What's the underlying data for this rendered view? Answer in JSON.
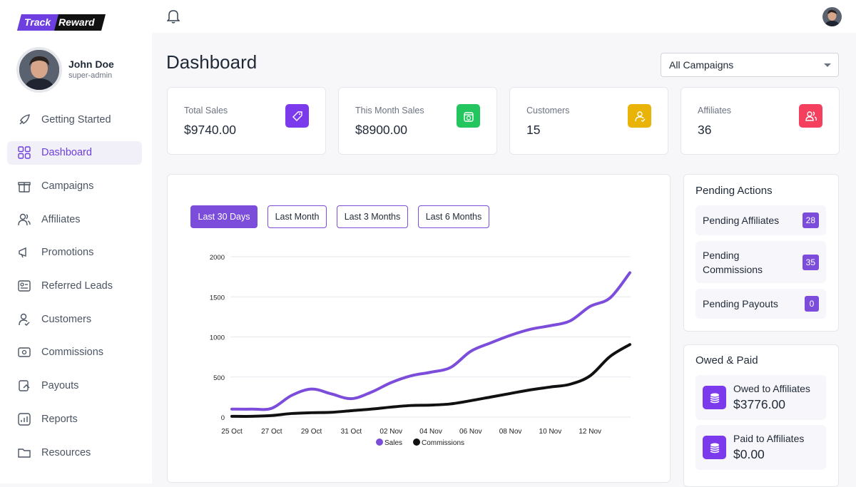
{
  "brand": {
    "part1": "Track",
    "part2": "Reward"
  },
  "user": {
    "name": "John Doe",
    "role": "super-admin"
  },
  "nav": [
    "Getting Started",
    "Dashboard",
    "Campaigns",
    "Affiliates",
    "Promotions",
    "Referred Leads",
    "Customers",
    "Commissions",
    "Payouts",
    "Reports",
    "Resources"
  ],
  "header": {
    "title": "Dashboard",
    "campaign_select": "All Campaigns"
  },
  "stats": [
    {
      "label": "Total Sales",
      "value": "$9740.00"
    },
    {
      "label": "This Month Sales",
      "value": "$8900.00"
    },
    {
      "label": "Customers",
      "value": "15"
    },
    {
      "label": "Affiliates",
      "value": "36"
    }
  ],
  "filters": [
    "Last 30 Days",
    "Last Month",
    "Last 3 Months",
    "Last 6 Months"
  ],
  "chart_data": {
    "type": "line",
    "categories": [
      "25 Oct",
      null,
      "27 Oct",
      null,
      "29 Oct",
      null,
      "31 Oct",
      null,
      "02 Nov",
      null,
      "04 Nov",
      null,
      "06 Nov",
      null,
      "08 Nov",
      null,
      "10 Nov",
      null,
      "12 Nov",
      null,
      null
    ],
    "series": [
      {
        "name": "Sales",
        "color": "#7c4ddb",
        "values": [
          100,
          100,
          110,
          270,
          350,
          290,
          230,
          310,
          430,
          515,
          560,
          620,
          820,
          925,
          1020,
          1095,
          1140,
          1200,
          1380,
          1485,
          1800
        ]
      },
      {
        "name": "Commissions",
        "color": "#111111",
        "values": [
          10,
          10,
          20,
          45,
          55,
          60,
          80,
          100,
          125,
          145,
          150,
          165,
          205,
          250,
          295,
          340,
          375,
          410,
          515,
          755,
          905
        ]
      }
    ],
    "ylim": [
      0,
      2000
    ],
    "yticks": [
      0,
      500,
      1000,
      1500,
      2000
    ],
    "grid": true,
    "legend": "bottom"
  },
  "pending": {
    "title": "Pending Actions",
    "items": [
      {
        "label": "Pending Affiliates",
        "count": "28"
      },
      {
        "label": "Pending Commissions",
        "count": "35"
      },
      {
        "label": "Pending Payouts",
        "count": "0"
      }
    ]
  },
  "owed": {
    "title": "Owed & Paid",
    "items": [
      {
        "label": "Owed to Affiliates",
        "value": "$3776.00"
      },
      {
        "label": "Paid to Affiliates",
        "value": "$0.00"
      }
    ]
  }
}
